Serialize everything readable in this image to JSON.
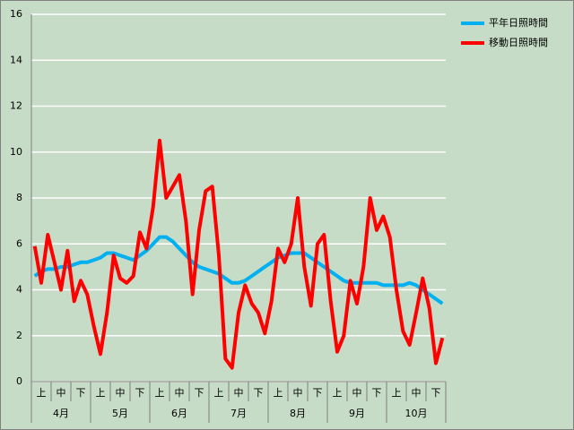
{
  "chart_data": {
    "type": "line",
    "categories": [
      null,
      "上",
      null,
      null,
      "中",
      null,
      null,
      "下",
      null,
      null,
      "上",
      null,
      null,
      "中",
      null,
      null,
      "下",
      null,
      null,
      "上",
      null,
      null,
      "中",
      null,
      null,
      "下",
      null,
      null,
      "上",
      null,
      null,
      "中",
      null,
      null,
      "下",
      null,
      null,
      "上",
      null,
      null,
      "中",
      null,
      null,
      "下",
      null,
      null,
      "上",
      null,
      null,
      "中",
      null,
      null,
      "下",
      null,
      null,
      "上",
      null,
      null,
      "中",
      null,
      null,
      "下",
      null
    ],
    "groups": [
      "4月",
      "5月",
      "6月",
      "7月",
      "8月",
      "9月",
      "10月"
    ],
    "series": [
      {
        "name": "平年日照時間",
        "color": "#00b0f0",
        "values": [
          4.6,
          4.8,
          4.9,
          4.9,
          5.0,
          5.0,
          5.1,
          5.2,
          5.2,
          5.3,
          5.4,
          5.6,
          5.6,
          5.5,
          5.4,
          5.3,
          5.5,
          5.7,
          6.0,
          6.3,
          6.3,
          6.1,
          5.8,
          5.5,
          5.2,
          5.0,
          4.9,
          4.8,
          4.7,
          4.5,
          4.3,
          4.3,
          4.4,
          4.6,
          4.8,
          5.0,
          5.2,
          5.4,
          5.5,
          5.6,
          5.6,
          5.6,
          5.4,
          5.2,
          5.0,
          4.8,
          4.6,
          4.4,
          4.3,
          4.3,
          4.3,
          4.3,
          4.3,
          4.2,
          4.2,
          4.2,
          4.2,
          4.3,
          4.2,
          4.0,
          3.8,
          3.6,
          3.4
        ]
      },
      {
        "name": "移動日照時間",
        "color": "#ff0000",
        "values": [
          5.9,
          4.3,
          6.4,
          5.2,
          4.0,
          5.7,
          3.5,
          4.4,
          3.8,
          2.4,
          1.2,
          3.0,
          5.5,
          4.5,
          4.3,
          4.6,
          6.5,
          5.8,
          7.6,
          10.5,
          8.0,
          8.5,
          9.0,
          7.0,
          3.8,
          6.6,
          8.3,
          8.5,
          5.5,
          1.0,
          0.6,
          3.0,
          4.2,
          3.4,
          3.0,
          2.1,
          3.5,
          5.8,
          5.2,
          6.0,
          8.0,
          5.0,
          3.3,
          6.0,
          6.4,
          3.5,
          1.3,
          2.0,
          4.4,
          3.4,
          5.0,
          8.0,
          6.6,
          7.2,
          6.3,
          4.0,
          2.2,
          1.6,
          3.0,
          4.5,
          3.2,
          0.8,
          1.9
        ]
      }
    ],
    "ylim": [
      0,
      16
    ],
    "yticks": [
      0,
      2,
      4,
      6,
      8,
      10,
      12,
      14,
      16
    ],
    "grid": true
  }
}
